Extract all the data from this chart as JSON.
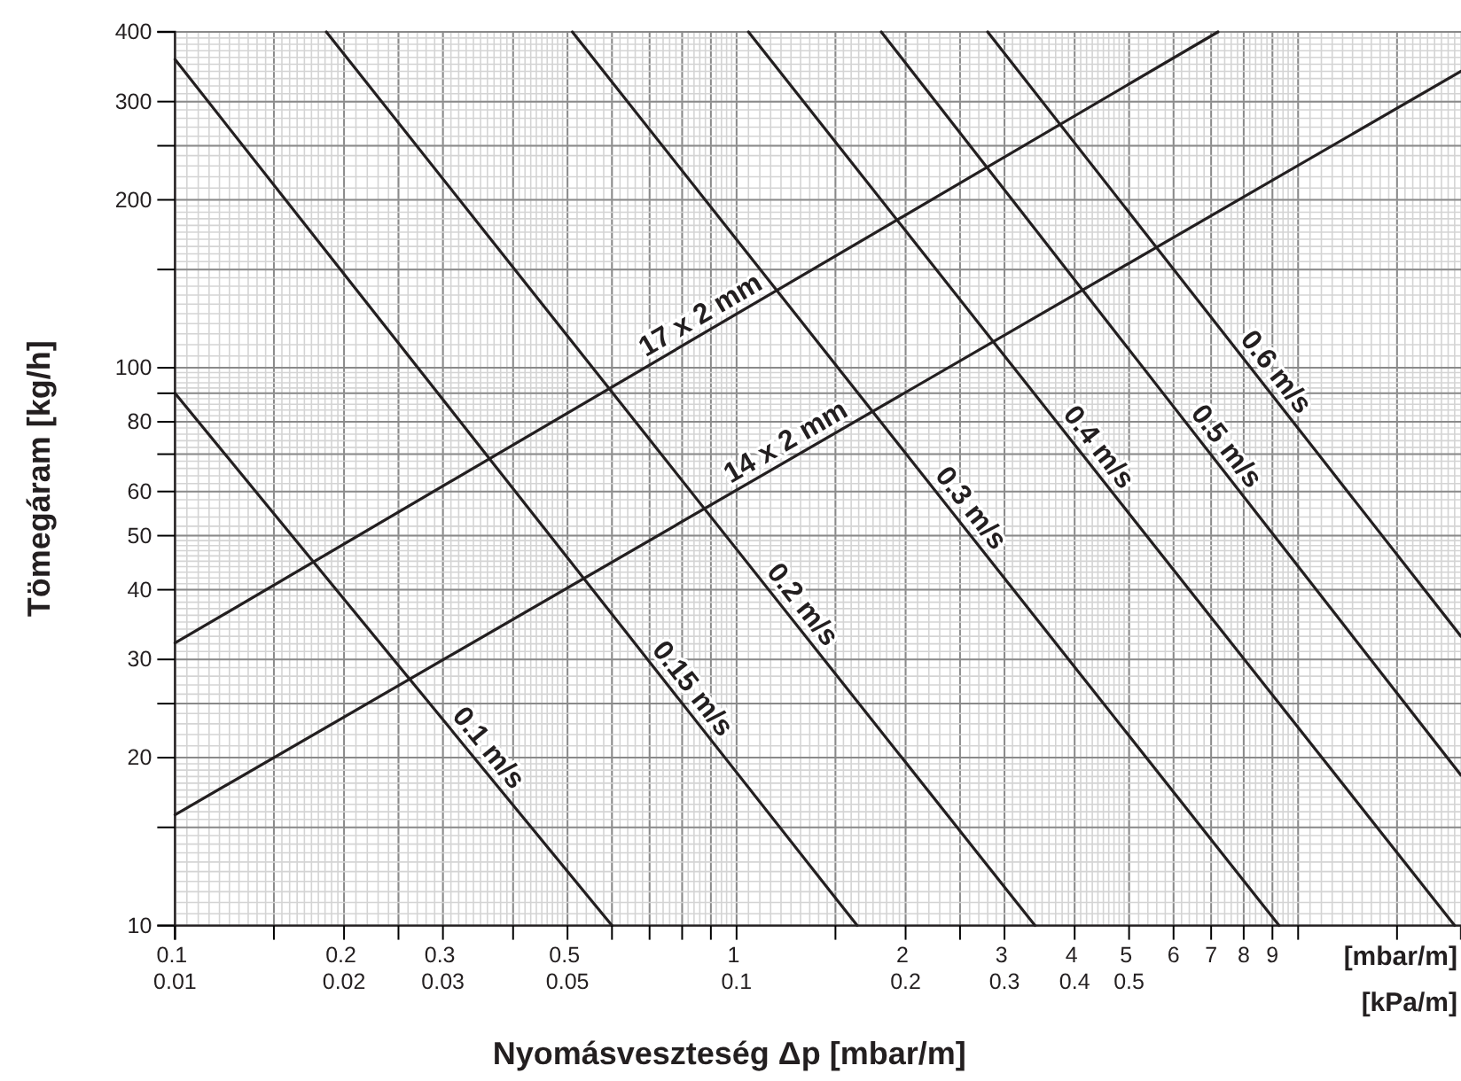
{
  "chart_data": {
    "type": "line",
    "xlabel": "Nyomásveszteség Δp [mbar/m]",
    "ylabel": "Tömegáram [kg/h]",
    "annotations": [
      "[mbar/m]",
      "[kPa/m]"
    ],
    "log": "xy",
    "grid": true,
    "legend": false,
    "xlim": [
      0.1,
      19.5
    ],
    "ylim": [
      10,
      400
    ],
    "xticks": [
      {
        "value": 0.1,
        "label": "0.1\n0.01"
      },
      {
        "value": 0.15,
        "label": null
      },
      {
        "value": 0.2,
        "label": "0.2\n0.02"
      },
      {
        "value": 0.25,
        "label": null
      },
      {
        "value": 0.3,
        "label": "0.3\n0.03"
      },
      {
        "value": 0.4,
        "label": null
      },
      {
        "value": 0.5,
        "label": "0.5\n0.05"
      },
      {
        "value": 0.6,
        "label": null
      },
      {
        "value": 0.7,
        "label": null
      },
      {
        "value": 0.8,
        "label": null
      },
      {
        "value": 0.9,
        "label": null
      },
      {
        "value": 1,
        "label": "1\n0.1"
      },
      {
        "value": 1.5,
        "label": null
      },
      {
        "value": 2,
        "label": "2\n0.2"
      },
      {
        "value": 2.5,
        "label": null
      },
      {
        "value": 3,
        "label": "3\n0.3"
      },
      {
        "value": 4,
        "label": "4\n0.4"
      },
      {
        "value": 5,
        "label": "5\n0.5"
      },
      6,
      7,
      8,
      9,
      {
        "value": 10,
        "label": null
      },
      {
        "value": 15,
        "label": null
      }
    ],
    "yticks": [
      10,
      {
        "value": 15,
        "label": null
      },
      20,
      {
        "value": 25,
        "label": null
      },
      30,
      40,
      50,
      60,
      {
        "value": 70,
        "label": null
      },
      80,
      {
        "value": 90,
        "label": null
      },
      100,
      {
        "value": 150,
        "label": null
      },
      200,
      {
        "value": 250,
        "label": null
      },
      300,
      400
    ],
    "series": [
      {
        "name": "17 x 2 mm",
        "color": "#231f20",
        "x": [
          0.1,
          7.2
        ],
        "values": [
          32.1,
          400
        ]
      },
      {
        "name": "14 x 2 mm",
        "color": "#231f20",
        "x": [
          0.1,
          19.5
        ],
        "values": [
          15.8,
          340
        ]
      },
      {
        "name": "0.1 m/s",
        "color": "#231f20",
        "x": [
          0.1,
          0.6
        ],
        "values": [
          90,
          10
        ]
      },
      {
        "name": "0.15 m/s",
        "color": "#231f20",
        "x": [
          0.1,
          1.64
        ],
        "values": [
          357,
          10
        ]
      },
      {
        "name": "0.2 m/s",
        "color": "#231f20",
        "x": [
          0.186,
          3.4
        ],
        "values": [
          400,
          10
        ]
      },
      {
        "name": "0.3 m/s",
        "color": "#231f20",
        "x": [
          0.51,
          9.25
        ],
        "values": [
          400,
          10
        ]
      },
      {
        "name": "0.4 m/s",
        "color": "#231f20",
        "x": [
          1.05,
          19
        ],
        "values": [
          400,
          10
        ]
      },
      {
        "name": "0.5 m/s",
        "color": "#231f20",
        "x": [
          1.81,
          19.5
        ],
        "values": [
          400,
          18.6
        ]
      },
      {
        "name": "0.6 m/s",
        "color": "#231f20",
        "x": [
          2.8,
          19.5
        ],
        "values": [
          400,
          33
        ]
      }
    ]
  }
}
